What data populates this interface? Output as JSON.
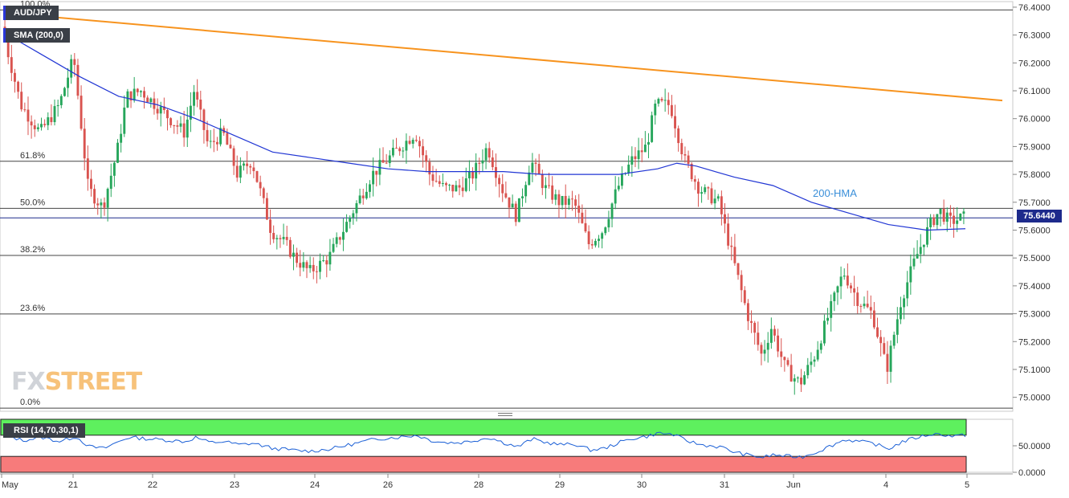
{
  "header": {
    "symbol": "AUD/JPY",
    "indicator": "SMA (200,0)",
    "last_price": "75.6440"
  },
  "logo": {
    "part1": "FX",
    "part2": "STREET"
  },
  "colors": {
    "bull": "#26a65b",
    "bear": "#d9534f",
    "hma": "#2136d4",
    "trendline": "#f7931e",
    "rsi_line": "#1a5fd6",
    "rsi_overbought": "#5ef05e",
    "rsi_oversold": "#f77b7b",
    "label_bg": "#3a3f47",
    "price_tag": "#1d2a8c"
  },
  "chart_data": [
    {
      "type": "candlestick",
      "title": "AUD/JPY",
      "ylim": [
        74.95,
        76.42
      ],
      "y_ticks": [
        "76.4000",
        "76.3000",
        "76.2000",
        "76.1000",
        "76.0000",
        "75.9000",
        "75.8000",
        "75.7000",
        "75.6000",
        "75.5000",
        "75.4000",
        "75.3000",
        "75.2000",
        "75.1000",
        "75.0000"
      ],
      "x_ticks": [
        "May",
        "21",
        "22",
        "23",
        "24",
        "26",
        "28",
        "29",
        "30",
        "31",
        "Jun",
        "4",
        "5"
      ],
      "fibonacci": [
        {
          "label": "100.0%",
          "value": 76.39
        },
        {
          "label": "61.8%",
          "value": 75.847
        },
        {
          "label": "50.0%",
          "value": 75.678
        },
        {
          "label": "38.2%",
          "value": 75.509
        },
        {
          "label": "23.6%",
          "value": 75.299
        },
        {
          "label": "0.0%",
          "value": 74.961
        }
      ],
      "current_price": 75.644,
      "hma_label": "200-HMA",
      "trendline": {
        "start": [
          0,
          76.38
        ],
        "end": [
          1.0,
          76.065
        ]
      },
      "hma_points": [
        [
          0,
          76.31
        ],
        [
          0.04,
          76.23
        ],
        [
          0.08,
          76.15
        ],
        [
          0.12,
          76.08
        ],
        [
          0.16,
          76.05
        ],
        [
          0.2,
          76.0
        ],
        [
          0.24,
          75.94
        ],
        [
          0.28,
          75.88
        ],
        [
          0.32,
          75.86
        ],
        [
          0.36,
          75.84
        ],
        [
          0.4,
          75.82
        ],
        [
          0.44,
          75.81
        ],
        [
          0.48,
          75.81
        ],
        [
          0.52,
          75.81
        ],
        [
          0.56,
          75.8
        ],
        [
          0.6,
          75.8
        ],
        [
          0.64,
          75.8
        ],
        [
          0.68,
          75.82
        ],
        [
          0.7,
          75.84
        ],
        [
          0.72,
          75.83
        ],
        [
          0.76,
          75.79
        ],
        [
          0.8,
          75.76
        ],
        [
          0.84,
          75.7
        ],
        [
          0.88,
          75.66
        ],
        [
          0.92,
          75.62
        ],
        [
          0.96,
          75.6
        ],
        [
          1.0,
          75.605
        ]
      ],
      "price_path": [
        [
          0,
          76.33
        ],
        [
          0.02,
          76.05
        ],
        [
          0.04,
          75.95
        ],
        [
          0.06,
          76.05
        ],
        [
          0.075,
          76.22
        ],
        [
          0.09,
          75.75
        ],
        [
          0.105,
          75.68
        ],
        [
          0.12,
          75.88
        ],
        [
          0.13,
          76.08
        ],
        [
          0.145,
          76.1
        ],
        [
          0.16,
          76.05
        ],
        [
          0.175,
          76.0
        ],
        [
          0.19,
          75.95
        ],
        [
          0.2,
          76.1
        ],
        [
          0.215,
          75.9
        ],
        [
          0.23,
          75.95
        ],
        [
          0.245,
          75.8
        ],
        [
          0.26,
          75.85
        ],
        [
          0.28,
          75.6
        ],
        [
          0.295,
          75.55
        ],
        [
          0.305,
          75.5
        ],
        [
          0.32,
          75.45
        ],
        [
          0.34,
          75.5
        ],
        [
          0.355,
          75.6
        ],
        [
          0.37,
          75.7
        ],
        [
          0.385,
          75.8
        ],
        [
          0.4,
          75.85
        ],
        [
          0.415,
          75.9
        ],
        [
          0.43,
          75.95
        ],
        [
          0.445,
          75.8
        ],
        [
          0.46,
          75.75
        ],
        [
          0.475,
          75.75
        ],
        [
          0.49,
          75.8
        ],
        [
          0.505,
          75.9
        ],
        [
          0.52,
          75.75
        ],
        [
          0.535,
          75.65
        ],
        [
          0.55,
          75.85
        ],
        [
          0.565,
          75.75
        ],
        [
          0.58,
          75.7
        ],
        [
          0.595,
          75.7
        ],
        [
          0.61,
          75.55
        ],
        [
          0.625,
          75.6
        ],
        [
          0.64,
          75.75
        ],
        [
          0.655,
          75.85
        ],
        [
          0.67,
          75.9
        ],
        [
          0.68,
          76.05
        ],
        [
          0.695,
          76.05
        ],
        [
          0.71,
          75.85
        ],
        [
          0.725,
          75.75
        ],
        [
          0.745,
          75.7
        ],
        [
          0.76,
          75.5
        ],
        [
          0.775,
          75.3
        ],
        [
          0.79,
          75.15
        ],
        [
          0.8,
          75.25
        ],
        [
          0.815,
          75.1
        ],
        [
          0.83,
          75.05
        ],
        [
          0.845,
          75.15
        ],
        [
          0.86,
          75.3
        ],
        [
          0.875,
          75.45
        ],
        [
          0.89,
          75.35
        ],
        [
          0.905,
          75.3
        ],
        [
          0.92,
          75.1
        ],
        [
          0.935,
          75.35
        ],
        [
          0.95,
          75.5
        ],
        [
          0.965,
          75.62
        ],
        [
          0.975,
          75.67
        ],
        [
          0.985,
          75.63
        ],
        [
          1.0,
          75.645
        ]
      ]
    },
    {
      "type": "line",
      "title": "RSI (14,70,30,1)",
      "ylim": [
        0,
        100
      ],
      "y_ticks": [
        "50.0000",
        "0.0000"
      ],
      "overbought": 70,
      "oversold": 30,
      "rsi_path": [
        [
          0,
          72
        ],
        [
          0.02,
          60
        ],
        [
          0.04,
          66
        ],
        [
          0.06,
          58
        ],
        [
          0.075,
          68
        ],
        [
          0.09,
          48
        ],
        [
          0.105,
          45
        ],
        [
          0.12,
          58
        ],
        [
          0.13,
          66
        ],
        [
          0.145,
          64
        ],
        [
          0.16,
          62
        ],
        [
          0.175,
          60
        ],
        [
          0.19,
          58
        ],
        [
          0.2,
          66
        ],
        [
          0.215,
          56
        ],
        [
          0.23,
          58
        ],
        [
          0.245,
          52
        ],
        [
          0.26,
          55
        ],
        [
          0.28,
          45
        ],
        [
          0.295,
          43
        ],
        [
          0.305,
          41
        ],
        [
          0.32,
          40
        ],
        [
          0.34,
          44
        ],
        [
          0.355,
          50
        ],
        [
          0.37,
          56
        ],
        [
          0.385,
          62
        ],
        [
          0.4,
          65
        ],
        [
          0.415,
          67
        ],
        [
          0.43,
          70
        ],
        [
          0.445,
          60
        ],
        [
          0.46,
          56
        ],
        [
          0.475,
          56
        ],
        [
          0.49,
          60
        ],
        [
          0.505,
          66
        ],
        [
          0.52,
          56
        ],
        [
          0.535,
          48
        ],
        [
          0.55,
          63
        ],
        [
          0.565,
          56
        ],
        [
          0.58,
          52
        ],
        [
          0.595,
          53
        ],
        [
          0.61,
          42
        ],
        [
          0.625,
          45
        ],
        [
          0.64,
          56
        ],
        [
          0.655,
          64
        ],
        [
          0.67,
          68
        ],
        [
          0.68,
          74
        ],
        [
          0.695,
          72
        ],
        [
          0.71,
          60
        ],
        [
          0.725,
          52
        ],
        [
          0.745,
          48
        ],
        [
          0.76,
          38
        ],
        [
          0.775,
          32
        ],
        [
          0.79,
          28
        ],
        [
          0.8,
          33
        ],
        [
          0.815,
          30
        ],
        [
          0.83,
          29
        ],
        [
          0.845,
          38
        ],
        [
          0.86,
          50
        ],
        [
          0.875,
          62
        ],
        [
          0.89,
          58
        ],
        [
          0.905,
          54
        ],
        [
          0.92,
          44
        ],
        [
          0.935,
          58
        ],
        [
          0.95,
          66
        ],
        [
          0.965,
          72
        ],
        [
          0.975,
          72
        ],
        [
          0.985,
          68
        ],
        [
          1.0,
          70
        ]
      ]
    }
  ]
}
